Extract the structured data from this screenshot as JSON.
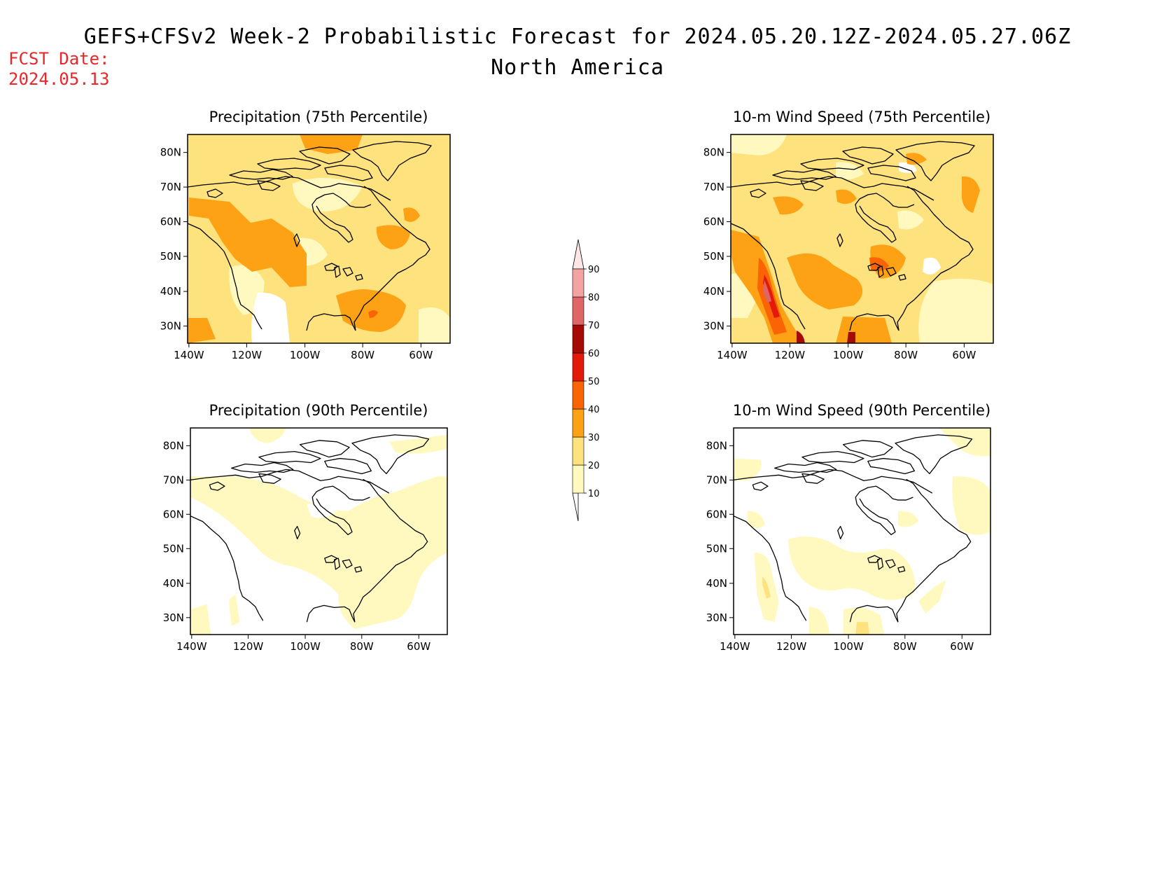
{
  "header": {
    "title": "GEFS+CFSv2 Week-2 Probabilistic Forecast for 2024.05.20.12Z-2024.05.27.06Z",
    "subtitle": "North America",
    "fcst_date_label": "FCST Date:",
    "fcst_date_value": "2024.05.13"
  },
  "axes": {
    "lon_ticks": [
      "140W",
      "120W",
      "100W",
      "80W",
      "60W"
    ],
    "lat_ticks": [
      "80N",
      "70N",
      "60N",
      "50N",
      "40N",
      "30N"
    ]
  },
  "panels": [
    {
      "title": "Precipitation (75th Percentile)",
      "variable": "precipitation",
      "percentile": 75,
      "dominant_probability_bin": "20-30"
    },
    {
      "title": "10-m Wind Speed (75th Percentile)",
      "variable": "wind_speed_10m",
      "percentile": 75,
      "dominant_probability_bin": "20-30"
    },
    {
      "title": "Precipitation (90th Percentile)",
      "variable": "precipitation",
      "percentile": 90,
      "dominant_probability_bin": "10-20"
    },
    {
      "title": "10-m Wind Speed (90th Percentile)",
      "variable": "wind_speed_10m",
      "percentile": 90,
      "dominant_probability_bin": "10-20"
    }
  ],
  "colorbar": {
    "labels": [
      "90",
      "80",
      "70",
      "60",
      "50",
      "40",
      "30",
      "20",
      "10"
    ],
    "bins": [
      {
        "range": "10-20",
        "color": "#fff9c0"
      },
      {
        "range": "20-30",
        "color": "#fde27d"
      },
      {
        "range": "30-40",
        "color": "#fca214"
      },
      {
        "range": "40-50",
        "color": "#fa6405"
      },
      {
        "range": "50-60",
        "color": "#e31a09"
      },
      {
        "range": "60-70",
        "color": "#a50b04"
      },
      {
        "range": "70-80",
        "color": "#e06666"
      },
      {
        "range": "80-90",
        "color": "#f4a3a3"
      },
      {
        "range": ">90",
        "color": "#fde6e6"
      }
    ]
  }
}
